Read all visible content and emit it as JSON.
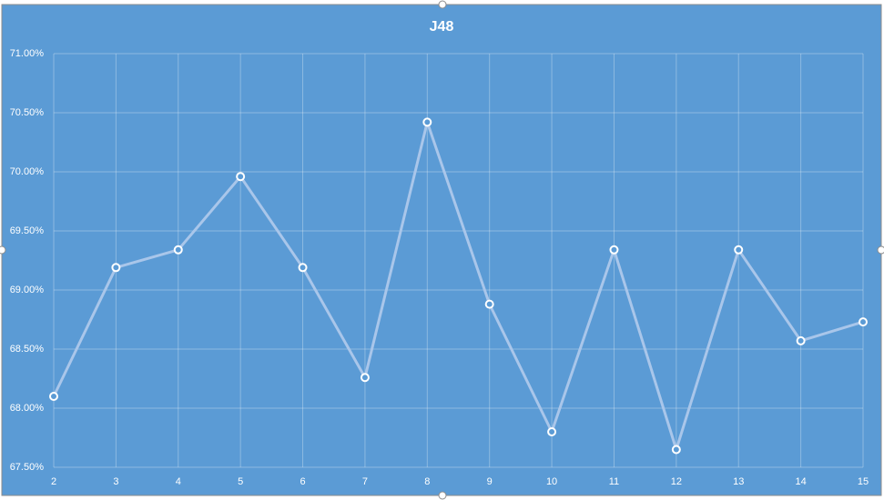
{
  "chart_data": {
    "type": "line",
    "title": "J48",
    "x": [
      2,
      3,
      4,
      5,
      6,
      7,
      8,
      9,
      10,
      11,
      12,
      13,
      14,
      15
    ],
    "series": [
      {
        "name": "J48",
        "color": "#a9c6ea",
        "values": [
          68.1,
          69.19,
          69.34,
          69.96,
          69.19,
          68.26,
          70.42,
          68.88,
          67.8,
          69.34,
          67.65,
          69.34,
          68.57,
          68.73
        ]
      }
    ],
    "xlim": [
      2,
      15
    ],
    "xticks": [
      2,
      3,
      4,
      5,
      6,
      7,
      8,
      9,
      10,
      11,
      12,
      13,
      14,
      15
    ],
    "ylim": [
      67.5,
      71
    ],
    "yticks": [
      {
        "value": 67.5,
        "label": "67.50%"
      },
      {
        "value": 68,
        "label": "68.00%"
      },
      {
        "value": 68.5,
        "label": "68.50%"
      },
      {
        "value": 69,
        "label": "69.00%"
      },
      {
        "value": 69.5,
        "label": "69.50%"
      },
      {
        "value": 70,
        "label": "70.00%"
      },
      {
        "value": 70.5,
        "label": "70.50%"
      },
      {
        "value": 71,
        "label": "71.00%"
      }
    ],
    "grid": true
  }
}
